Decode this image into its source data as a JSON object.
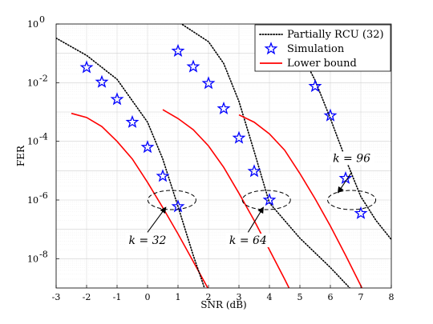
{
  "chart_data": {
    "type": "line",
    "xlabel": "SNR (dB)",
    "ylabel": "FER",
    "xlim": [
      -3,
      8
    ],
    "ylim_log10": [
      -9,
      0
    ],
    "y_scale": "log",
    "grid": true,
    "legend_position": "top-right",
    "x_ticks": [
      "-3",
      "-2",
      "-1",
      "0",
      "1",
      "2",
      "3",
      "4",
      "5",
      "6",
      "7",
      "8"
    ],
    "y_ticks": [
      {
        "base": "10",
        "exp": "0"
      },
      {
        "base": "10",
        "exp": "-2"
      },
      {
        "base": "10",
        "exp": "-4"
      },
      {
        "base": "10",
        "exp": "-6"
      },
      {
        "base": "10",
        "exp": "-8"
      }
    ],
    "legend": [
      {
        "label": "Partially RCU (32)",
        "style": "dotted",
        "color": "#000000"
      },
      {
        "label": "Simulation",
        "style": "star",
        "color": "#0000ff"
      },
      {
        "label": "Lower bound",
        "style": "solid",
        "color": "#ff0000"
      }
    ],
    "groups": [
      {
        "k_label": "k = 32",
        "rcu": [
          [
            -3,
            0.33
          ],
          [
            -2,
            0.085
          ],
          [
            -1,
            0.013
          ],
          [
            0,
            0.00045
          ],
          [
            0.5,
            2.5e-05
          ],
          [
            1,
            6e-07
          ],
          [
            1.5,
            1.3e-08
          ],
          [
            2,
            4e-10
          ]
        ],
        "simulation": [
          [
            -2,
            0.033
          ],
          [
            -1.5,
            0.0105
          ],
          [
            -1,
            0.0027
          ],
          [
            -0.5,
            0.00045
          ],
          [
            0,
            6.3e-05
          ],
          [
            0.5,
            6.5e-06
          ],
          [
            1,
            6e-07
          ]
        ],
        "lower_bound": [
          [
            -2.5,
            0.0009
          ],
          [
            -2,
            0.00065
          ],
          [
            -1.5,
            0.00032
          ],
          [
            -1,
            0.0001
          ],
          [
            -0.5,
            2.5e-05
          ],
          [
            0,
            4e-06
          ],
          [
            0.5,
            5.5e-07
          ],
          [
            1,
            7e-08
          ],
          [
            1.5,
            8e-09
          ],
          [
            2,
            9e-10
          ]
        ]
      },
      {
        "k_label": "k = 64",
        "rcu": [
          [
            1,
            1.2
          ],
          [
            2,
            0.25
          ],
          [
            2.5,
            0.045
          ],
          [
            3,
            0.0023
          ],
          [
            3.5,
            4.5e-05
          ],
          [
            4,
            8e-07
          ],
          [
            5,
            5e-08
          ],
          [
            6,
            5e-09
          ],
          [
            7,
            4e-10
          ]
        ],
        "simulation": [
          [
            1,
            0.12
          ],
          [
            1.5,
            0.035
          ],
          [
            2,
            0.0095
          ],
          [
            2.5,
            0.0013
          ],
          [
            3,
            0.00013
          ],
          [
            3.5,
            9.5e-06
          ],
          [
            4,
            1e-06
          ]
        ],
        "lower_bound": [
          [
            0.5,
            0.0012
          ],
          [
            1,
            0.0006
          ],
          [
            1.5,
            0.00025
          ],
          [
            2,
            7e-05
          ],
          [
            2.5,
            1.3e-05
          ],
          [
            3,
            1.7e-06
          ],
          [
            3.5,
            2e-07
          ],
          [
            4,
            2e-08
          ],
          [
            4.5,
            2e-09
          ],
          [
            5,
            1.8e-10
          ]
        ]
      },
      {
        "k_label": "k = 96",
        "rcu": [
          [
            4.3,
            0.9
          ],
          [
            5,
            0.12
          ],
          [
            5.5,
            0.012
          ],
          [
            6,
            0.0006
          ],
          [
            6.5,
            2.5e-05
          ],
          [
            7,
            1.3e-06
          ],
          [
            7.5,
            2e-07
          ],
          [
            8,
            4.5e-08
          ]
        ],
        "simulation": [
          [
            5,
            0.075
          ],
          [
            5.5,
            0.0075
          ],
          [
            6,
            0.00075
          ],
          [
            6.5,
            5.5e-06
          ],
          [
            7,
            3.5e-07
          ]
        ],
        "lower_bound": [
          [
            3,
            0.0008
          ],
          [
            3.5,
            0.00045
          ],
          [
            4,
            0.00018
          ],
          [
            4.5,
            5e-05
          ],
          [
            5,
            8e-06
          ],
          [
            5.5,
            1.1e-06
          ],
          [
            6,
            1.3e-07
          ],
          [
            6.5,
            1.3e-08
          ],
          [
            7,
            1.2e-09
          ],
          [
            7.3,
            2.5e-10
          ]
        ]
      }
    ],
    "ellipses": [
      {
        "cx": 0.8,
        "cy_log10": -6.0
      },
      {
        "cx": 3.9,
        "cy_log10": -6.0
      },
      {
        "cx": 6.7,
        "cy_log10": -6.0
      }
    ],
    "annotations": [
      {
        "text": "k = 32",
        "text_x": 0.0,
        "text_log10": -7.5,
        "arrow_from": [
          0.0,
          -7.1
        ],
        "arrow_to": [
          0.6,
          -6.25
        ]
      },
      {
        "text": "k = 64",
        "text_x": 3.3,
        "text_log10": -7.5,
        "arrow_from": [
          3.3,
          -7.1
        ],
        "arrow_to": [
          3.8,
          -6.25
        ]
      },
      {
        "text": "k = 96",
        "text_x": 6.7,
        "text_log10": -4.7,
        "arrow_from": [
          6.7,
          -5.05
        ],
        "arrow_to": [
          6.25,
          -5.75
        ]
      }
    ]
  }
}
